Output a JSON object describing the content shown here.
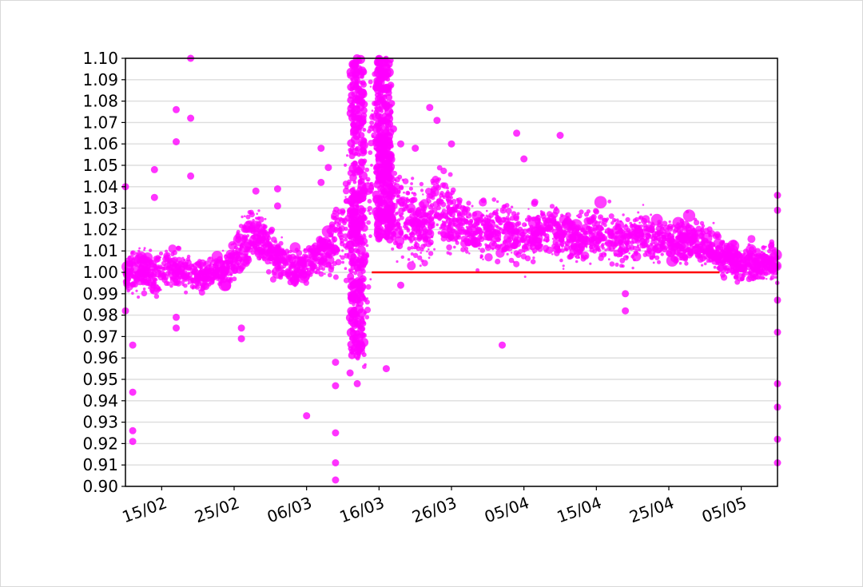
{
  "chart_data": {
    "type": "scatter",
    "title": "",
    "xlabel": "",
    "ylabel": "",
    "ylim": [
      0.9,
      1.1
    ],
    "y_ticks": [
      "0.90",
      "0.91",
      "0.92",
      "0.93",
      "0.94",
      "0.95",
      "0.96",
      "0.97",
      "0.98",
      "0.99",
      "1.00",
      "1.01",
      "1.02",
      "1.03",
      "1.04",
      "1.05",
      "1.06",
      "1.07",
      "1.08",
      "1.09",
      "1.10"
    ],
    "x_ticks": [
      "15/02",
      "25/02",
      "06/03",
      "16/03",
      "26/03",
      "05/04",
      "15/04",
      "25/04",
      "05/05"
    ],
    "xlim": [
      "2020-02-10",
      "2020-05-10"
    ],
    "grid": "horizontal",
    "colors": {
      "points": "#ff00ff",
      "reference": "#ff0000",
      "grid": "#dddddd"
    },
    "reference_line": {
      "y": 1.0,
      "x_start": "2020-03-15",
      "x_end": "2020-05-02"
    },
    "series": [
      {
        "x": [
          "2020-02-10",
          "2020-02-12",
          "2020-02-14",
          "2020-02-16",
          "2020-02-18",
          "2020-02-20",
          "2020-02-22",
          "2020-02-24",
          "2020-02-26",
          "2020-02-28",
          "2020-03-01",
          "2020-03-03",
          "2020-03-05",
          "2020-03-07",
          "2020-03-09",
          "2020-03-11",
          "2020-03-12",
          "2020-03-13",
          "2020-03-14",
          "2020-03-15",
          "2020-03-16",
          "2020-03-17",
          "2020-03-18",
          "2020-03-20",
          "2020-03-22",
          "2020-03-24",
          "2020-03-26",
          "2020-03-28",
          "2020-03-30",
          "2020-04-01",
          "2020-04-03",
          "2020-04-05",
          "2020-04-07",
          "2020-04-09",
          "2020-04-11",
          "2020-04-13",
          "2020-04-15",
          "2020-04-17",
          "2020-04-19",
          "2020-04-21",
          "2020-04-23",
          "2020-04-25",
          "2020-04-27",
          "2020-04-29",
          "2020-05-01",
          "2020-05-03",
          "2020-05-05",
          "2020-05-07",
          "2020-05-09"
        ],
        "y": [
          1.0,
          1.002,
          0.998,
          1.003,
          1.0,
          0.998,
          1.001,
          1.0,
          1.012,
          1.018,
          1.01,
          1.005,
          1.002,
          1.006,
          1.01,
          1.02,
          1.03,
          1.0,
          0.99,
          1.06,
          1.07,
          1.04,
          1.03,
          1.025,
          1.02,
          1.03,
          1.025,
          1.022,
          1.018,
          1.02,
          1.018,
          1.016,
          1.018,
          1.02,
          1.016,
          1.015,
          1.018,
          1.016,
          1.015,
          1.018,
          1.014,
          1.016,
          1.014,
          1.016,
          1.01,
          1.006,
          1.004,
          1.004,
          1.005
        ],
        "spread": [
          0.008,
          0.01,
          0.01,
          0.008,
          0.008,
          0.007,
          0.007,
          0.008,
          0.012,
          0.012,
          0.01,
          0.008,
          0.007,
          0.008,
          0.01,
          0.02,
          0.03,
          0.045,
          0.05,
          0.045,
          0.04,
          0.025,
          0.02,
          0.018,
          0.015,
          0.018,
          0.014,
          0.012,
          0.012,
          0.012,
          0.012,
          0.012,
          0.011,
          0.011,
          0.011,
          0.011,
          0.011,
          0.011,
          0.01,
          0.01,
          0.01,
          0.01,
          0.01,
          0.01,
          0.009,
          0.008,
          0.008,
          0.008,
          0.008
        ]
      }
    ],
    "outliers": [
      {
        "x": "2020-02-10",
        "y": 1.04
      },
      {
        "x": "2020-02-10",
        "y": 0.982
      },
      {
        "x": "2020-02-11",
        "y": 0.926
      },
      {
        "x": "2020-02-11",
        "y": 0.944
      },
      {
        "x": "2020-02-11",
        "y": 0.921
      },
      {
        "x": "2020-02-11",
        "y": 0.966
      },
      {
        "x": "2020-02-14",
        "y": 1.035
      },
      {
        "x": "2020-02-14",
        "y": 1.048
      },
      {
        "x": "2020-02-17",
        "y": 1.076
      },
      {
        "x": "2020-02-17",
        "y": 1.061
      },
      {
        "x": "2020-02-17",
        "y": 0.979
      },
      {
        "x": "2020-02-17",
        "y": 0.974
      },
      {
        "x": "2020-02-19",
        "y": 1.072
      },
      {
        "x": "2020-02-19",
        "y": 1.045
      },
      {
        "x": "2020-02-19",
        "y": 1.1
      },
      {
        "x": "2020-02-26",
        "y": 0.974
      },
      {
        "x": "2020-02-26",
        "y": 0.969
      },
      {
        "x": "2020-02-28",
        "y": 1.038
      },
      {
        "x": "2020-03-02",
        "y": 1.039
      },
      {
        "x": "2020-03-02",
        "y": 1.031
      },
      {
        "x": "2020-03-06",
        "y": 0.933
      },
      {
        "x": "2020-03-08",
        "y": 1.058
      },
      {
        "x": "2020-03-08",
        "y": 1.042
      },
      {
        "x": "2020-03-09",
        "y": 1.049
      },
      {
        "x": "2020-03-10",
        "y": 0.958
      },
      {
        "x": "2020-03-10",
        "y": 0.947
      },
      {
        "x": "2020-03-10",
        "y": 0.925
      },
      {
        "x": "2020-03-10",
        "y": 0.911
      },
      {
        "x": "2020-03-10",
        "y": 0.903
      },
      {
        "x": "2020-03-12",
        "y": 0.953
      },
      {
        "x": "2020-03-13",
        "y": 0.948
      },
      {
        "x": "2020-03-17",
        "y": 0.955
      },
      {
        "x": "2020-03-18",
        "y": 1.067
      },
      {
        "x": "2020-03-19",
        "y": 0.994
      },
      {
        "x": "2020-03-19",
        "y": 1.06
      },
      {
        "x": "2020-03-21",
        "y": 1.058
      },
      {
        "x": "2020-03-23",
        "y": 1.077
      },
      {
        "x": "2020-03-24",
        "y": 1.071
      },
      {
        "x": "2020-03-26",
        "y": 1.06
      },
      {
        "x": "2020-04-04",
        "y": 1.065
      },
      {
        "x": "2020-04-05",
        "y": 1.053
      },
      {
        "x": "2020-04-10",
        "y": 1.064
      },
      {
        "x": "2020-04-19",
        "y": 0.99
      },
      {
        "x": "2020-04-19",
        "y": 0.982
      },
      {
        "x": "2020-04-02",
        "y": 0.966
      },
      {
        "x": "2020-05-10",
        "y": 0.987
      },
      {
        "x": "2020-05-10",
        "y": 0.972
      },
      {
        "x": "2020-05-10",
        "y": 0.948
      },
      {
        "x": "2020-05-10",
        "y": 0.937
      },
      {
        "x": "2020-05-10",
        "y": 0.922
      },
      {
        "x": "2020-05-10",
        "y": 0.911
      },
      {
        "x": "2020-05-10",
        "y": 1.036
      },
      {
        "x": "2020-05-10",
        "y": 1.029
      }
    ]
  }
}
